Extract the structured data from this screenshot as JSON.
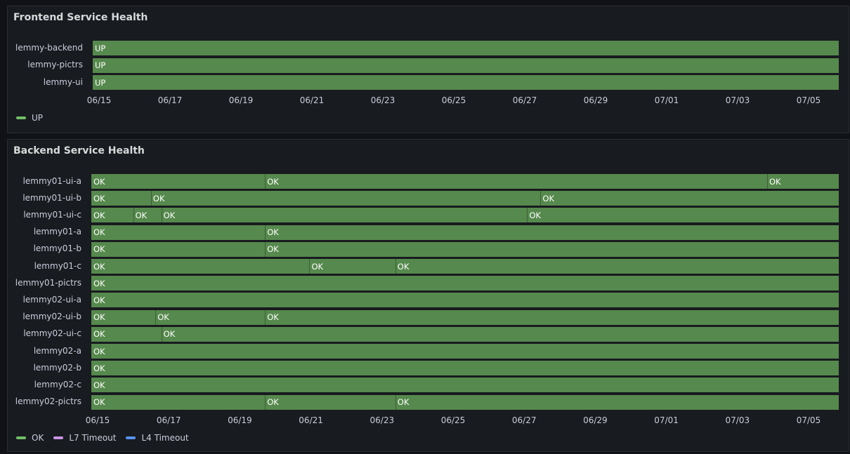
{
  "frontend": {
    "title": "Frontend Service Health",
    "rows": [
      {
        "label": "lemmy-backend",
        "segments": [
          {
            "start": "06/14 20:00",
            "state": "UP"
          }
        ]
      },
      {
        "label": "lemmy-pictrs",
        "segments": [
          {
            "start": "06/14 20:00",
            "state": "UP"
          }
        ]
      },
      {
        "label": "lemmy-ui",
        "segments": [
          {
            "start": "06/14 20:00",
            "state": "UP"
          }
        ]
      }
    ],
    "ticks": [
      "06/15",
      "06/17",
      "06/19",
      "06/21",
      "06/23",
      "06/25",
      "06/27",
      "06/29",
      "07/01",
      "07/03",
      "07/05"
    ],
    "legend": [
      {
        "label": "UP",
        "color": "#73bf69"
      }
    ]
  },
  "backend": {
    "title": "Backend Service Health",
    "rows": [
      {
        "label": "lemmy01-ui-a",
        "segments": [
          {
            "start": "06/14 20:00",
            "state": "OK"
          },
          {
            "start": "06/19 17:00",
            "state": "OK"
          },
          {
            "start": "07/03 20:00",
            "state": "OK"
          }
        ]
      },
      {
        "label": "lemmy01-ui-b",
        "segments": [
          {
            "start": "06/14 20:00",
            "state": "OK"
          },
          {
            "start": "06/16 12:00",
            "state": "OK"
          },
          {
            "start": "06/27 11:00",
            "state": "OK"
          }
        ]
      },
      {
        "label": "lemmy01-ui-c",
        "segments": [
          {
            "start": "06/14 20:00",
            "state": "OK"
          },
          {
            "start": "06/16 00:00",
            "state": "OK"
          },
          {
            "start": "06/16 19:00",
            "state": "OK"
          },
          {
            "start": "06/27 02:00",
            "state": "OK"
          }
        ]
      },
      {
        "label": "lemmy01-a",
        "segments": [
          {
            "start": "06/14 20:00",
            "state": "OK"
          },
          {
            "start": "06/19 17:00",
            "state": "OK"
          }
        ]
      },
      {
        "label": "lemmy01-b",
        "segments": [
          {
            "start": "06/14 20:00",
            "state": "OK"
          },
          {
            "start": "06/19 17:00",
            "state": "OK"
          }
        ]
      },
      {
        "label": "lemmy01-c",
        "segments": [
          {
            "start": "06/14 20:00",
            "state": "OK"
          },
          {
            "start": "06/20 23:00",
            "state": "OK"
          },
          {
            "start": "06/23 09:00",
            "state": "OK"
          }
        ]
      },
      {
        "label": "lemmy01-pictrs",
        "segments": [
          {
            "start": "06/14 20:00",
            "state": "OK"
          }
        ]
      },
      {
        "label": "lemmy02-ui-a",
        "segments": [
          {
            "start": "06/14 20:00",
            "state": "OK"
          }
        ]
      },
      {
        "label": "lemmy02-ui-b",
        "segments": [
          {
            "start": "06/14 20:00",
            "state": "OK"
          },
          {
            "start": "06/16 15:00",
            "state": "OK"
          },
          {
            "start": "06/19 17:00",
            "state": "OK"
          }
        ]
      },
      {
        "label": "lemmy02-ui-c",
        "segments": [
          {
            "start": "06/14 20:00",
            "state": "OK"
          },
          {
            "start": "06/16 19:00",
            "state": "OK"
          }
        ]
      },
      {
        "label": "lemmy02-a",
        "segments": [
          {
            "start": "06/14 20:00",
            "state": "OK"
          }
        ]
      },
      {
        "label": "lemmy02-b",
        "segments": [
          {
            "start": "06/14 20:00",
            "state": "OK"
          }
        ]
      },
      {
        "label": "lemmy02-c",
        "segments": [
          {
            "start": "06/14 20:00",
            "state": "OK"
          }
        ]
      },
      {
        "label": "lemmy02-pictrs",
        "segments": [
          {
            "start": "06/14 20:00",
            "state": "OK"
          },
          {
            "start": "06/19 17:00",
            "state": "OK"
          },
          {
            "start": "06/23 09:00",
            "state": "OK"
          }
        ]
      }
    ],
    "ticks": [
      "06/15",
      "06/17",
      "06/19",
      "06/21",
      "06/23",
      "06/25",
      "06/27",
      "06/29",
      "07/01",
      "07/03",
      "07/05"
    ],
    "legend": [
      {
        "label": "OK",
        "color": "#73bf69"
      },
      {
        "label": "L7 Timeout",
        "color": "#ca95e5"
      },
      {
        "label": "L4 Timeout",
        "color": "#5794f2"
      }
    ]
  }
}
